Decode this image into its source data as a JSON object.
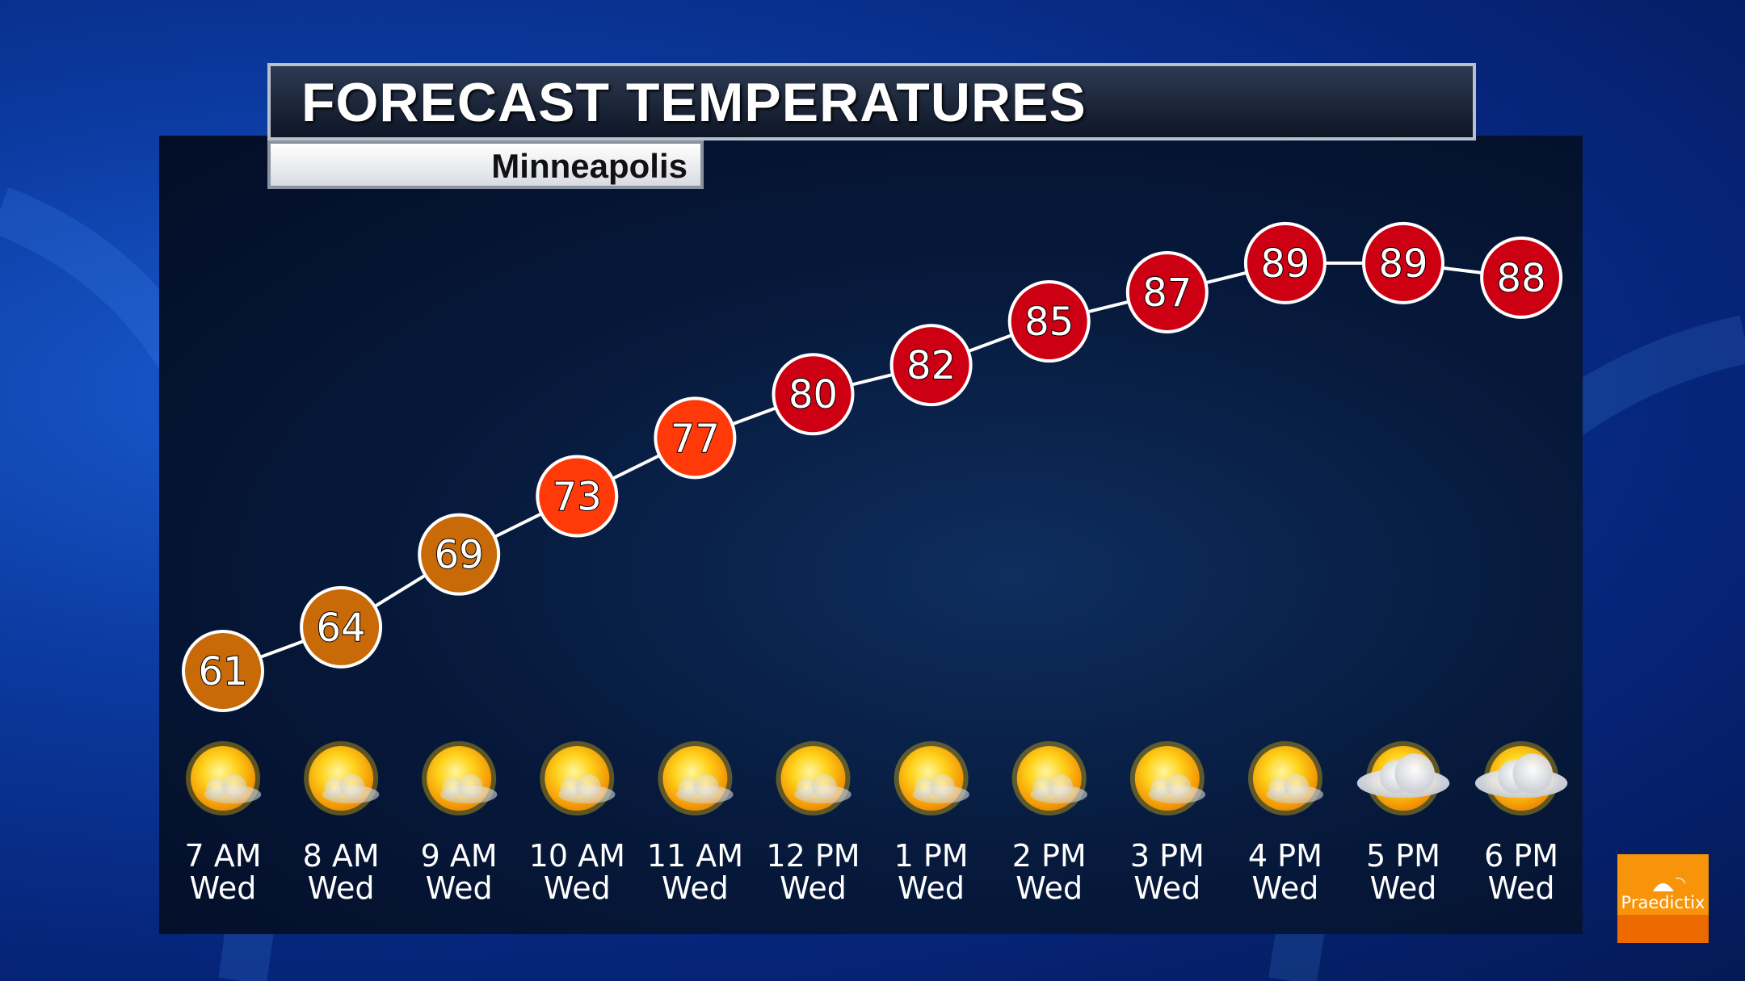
{
  "header": {
    "title": "FORECAST TEMPERATURES",
    "subtitle": "Minneapolis"
  },
  "logo": {
    "text": "Praedictix"
  },
  "colors": {
    "cool": "#c86a08",
    "warm": "#ff3a08",
    "hot": "#cc0012"
  },
  "chart_data": {
    "type": "line",
    "title": "FORECAST TEMPERATURES",
    "subtitle": "Minneapolis",
    "categories": [
      {
        "time": "7 AM",
        "day": "Wed",
        "icon": "sun-partly-cloudy-icon"
      },
      {
        "time": "8 AM",
        "day": "Wed",
        "icon": "sun-partly-cloudy-icon"
      },
      {
        "time": "9 AM",
        "day": "Wed",
        "icon": "sun-partly-cloudy-icon"
      },
      {
        "time": "10 AM",
        "day": "Wed",
        "icon": "sun-partly-cloudy-icon"
      },
      {
        "time": "11 AM",
        "day": "Wed",
        "icon": "sun-partly-cloudy-icon"
      },
      {
        "time": "12 PM",
        "day": "Wed",
        "icon": "sun-partly-cloudy-icon"
      },
      {
        "time": "1 PM",
        "day": "Wed",
        "icon": "sun-partly-cloudy-icon"
      },
      {
        "time": "2 PM",
        "day": "Wed",
        "icon": "sun-partly-cloudy-icon"
      },
      {
        "time": "3 PM",
        "day": "Wed",
        "icon": "sun-partly-cloudy-icon"
      },
      {
        "time": "4 PM",
        "day": "Wed",
        "icon": "sun-partly-cloudy-icon"
      },
      {
        "time": "5 PM",
        "day": "Wed",
        "icon": "mostly-cloudy-sun-icon"
      },
      {
        "time": "6 PM",
        "day": "Wed",
        "icon": "mostly-cloudy-sun-icon"
      }
    ],
    "values": [
      61,
      64,
      69,
      73,
      77,
      80,
      82,
      85,
      87,
      89,
      89,
      88
    ],
    "grid": false,
    "legend": "none"
  }
}
